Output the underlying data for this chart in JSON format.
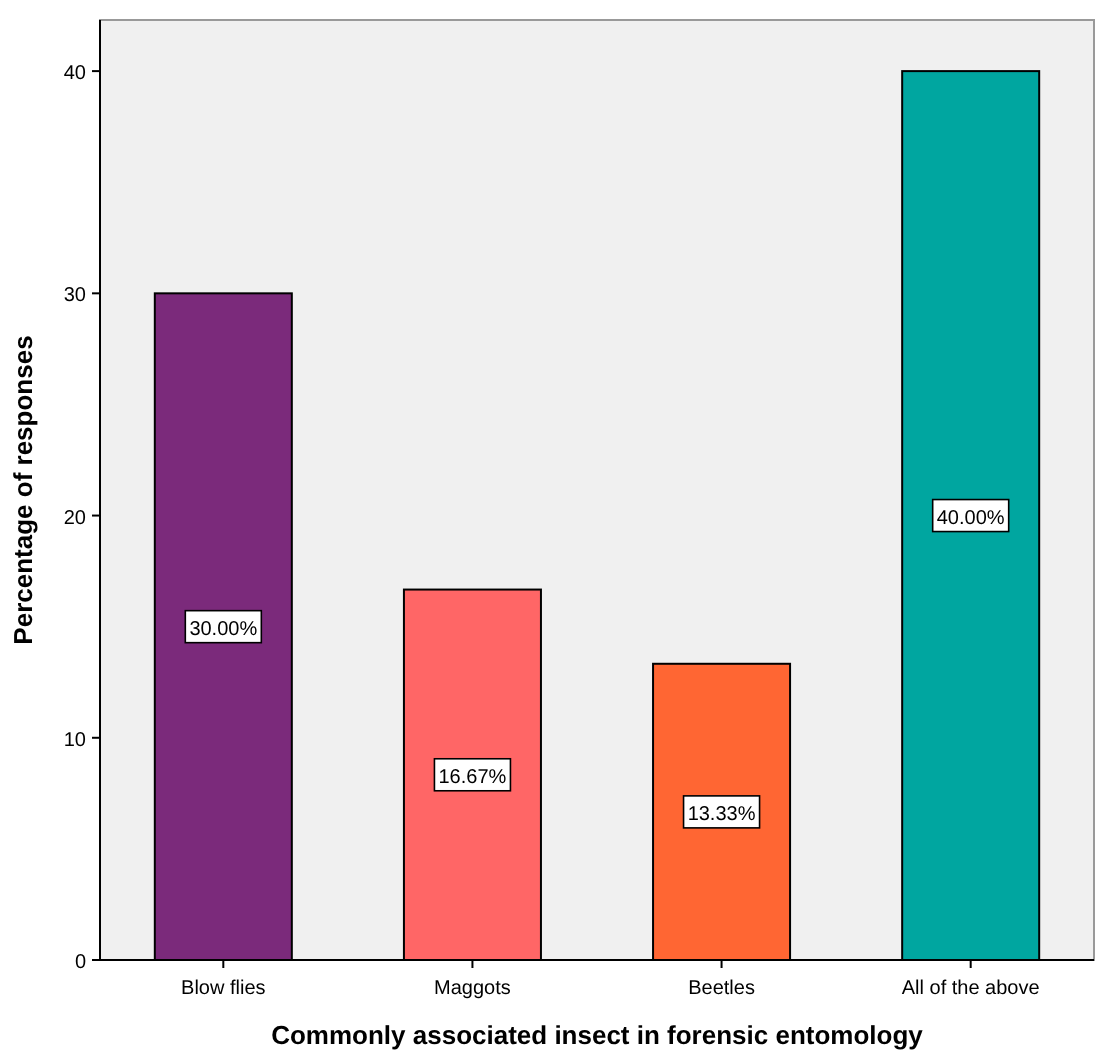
{
  "chart_data": {
    "type": "bar",
    "xlabel": "Commonly associated insect in forensic entomology",
    "ylabel": "Percentage of responses",
    "categories": [
      "Blow flies",
      "Maggots",
      "Beetles",
      "All of the above"
    ],
    "values": [
      30.0,
      16.67,
      13.33,
      40.0
    ],
    "colors": [
      "#7b2a7b",
      "#ff6666",
      "#ff6633",
      "#00a6a0"
    ],
    "value_labels": [
      "30.00%",
      "16.67%",
      "13.33%",
      "40.00%"
    ],
    "ylim": [
      0,
      42.3
    ],
    "yticks": [
      0,
      10,
      20,
      30,
      40
    ],
    "grid": false
  }
}
